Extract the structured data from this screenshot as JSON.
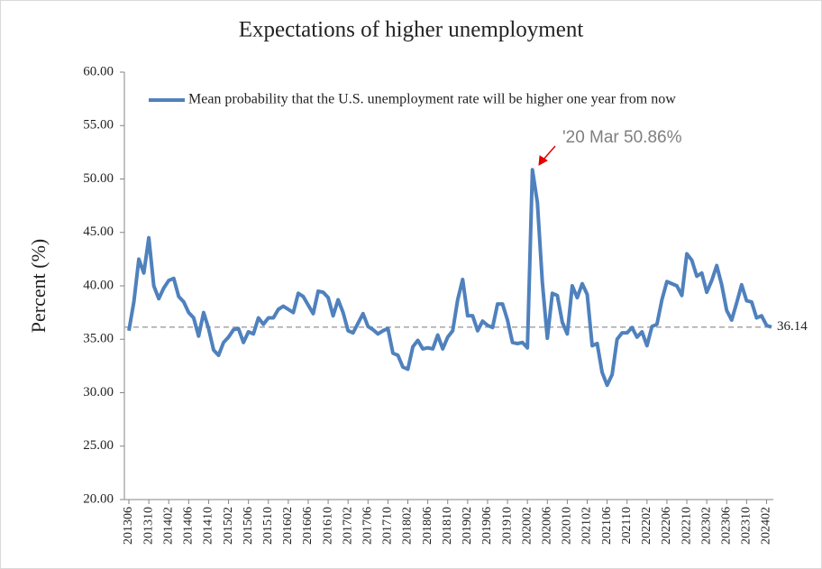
{
  "chart_data": {
    "type": "line",
    "title": "Expectations  of higher unemployment",
    "y_label": "Percent (%)",
    "categories": [
      "201306",
      null,
      null,
      null,
      "201310",
      null,
      null,
      null,
      "201402",
      null,
      null,
      null,
      "201406",
      null,
      null,
      null,
      "201410",
      null,
      null,
      null,
      "201502",
      null,
      null,
      null,
      "201506",
      null,
      null,
      null,
      "201510",
      null,
      null,
      null,
      "201602",
      null,
      null,
      null,
      "201606",
      null,
      null,
      null,
      "201610",
      null,
      null,
      null,
      "201702",
      null,
      null,
      null,
      "201706",
      null,
      null,
      null,
      "201710",
      null,
      null,
      null,
      "201802",
      null,
      null,
      null,
      "201806",
      null,
      null,
      null,
      "201810",
      null,
      null,
      null,
      "201902",
      null,
      null,
      null,
      "201906",
      null,
      null,
      null,
      "201910",
      null,
      null,
      null,
      "202002",
      null,
      null,
      null,
      "202006",
      null,
      null,
      null,
      "202010",
      null,
      null,
      null,
      "202102",
      null,
      null,
      null,
      "202106",
      null,
      null,
      null,
      "202110",
      null,
      null,
      null,
      "202202",
      null,
      null,
      null,
      "202206",
      null,
      null,
      null,
      "202210",
      null,
      null,
      null,
      "202302",
      null,
      null,
      null,
      "202306",
      null,
      null,
      null,
      "202310",
      null,
      null,
      null,
      "202402",
      null
    ],
    "series": [
      {
        "name": "Mean probability that the U.S. unemployment rate will be higher one year from now",
        "color": "#4f81bd",
        "values": [
          35.8,
          38.5,
          42.5,
          41.2,
          44.5,
          40.0,
          38.8,
          39.8,
          40.5,
          40.7,
          39.0,
          38.5,
          37.5,
          37.0,
          35.3,
          37.5,
          36.0,
          34.0,
          33.5,
          34.7,
          35.2,
          35.9,
          36.0,
          34.7,
          35.7,
          35.5,
          37.0,
          36.4,
          37.0,
          37.0,
          37.8,
          38.1,
          37.8,
          37.5,
          39.3,
          39.0,
          38.2,
          37.4,
          39.5,
          39.4,
          38.9,
          37.2,
          38.7,
          37.5,
          35.8,
          35.6,
          36.5,
          37.4,
          36.2,
          35.9,
          35.5,
          35.8,
          36.0,
          33.7,
          33.5,
          32.4,
          32.2,
          34.3,
          34.9,
          34.1,
          34.2,
          34.1,
          35.4,
          34.1,
          35.2,
          35.8,
          38.7,
          40.6,
          37.2,
          37.2,
          35.8,
          36.7,
          36.3,
          36.1,
          38.3,
          38.3,
          36.8,
          34.7,
          34.6,
          34.7,
          34.2,
          50.86,
          47.8,
          40.3,
          35.1,
          39.3,
          39.1,
          36.6,
          35.5,
          40.0,
          38.9,
          40.2,
          39.2,
          34.4,
          34.6,
          31.9,
          30.7,
          31.7,
          35.0,
          35.6,
          35.6,
          36.1,
          35.2,
          35.7,
          34.4,
          36.2,
          36.4,
          38.7,
          40.4,
          40.2,
          40.0,
          39.1,
          43.0,
          42.4,
          40.9,
          41.2,
          39.4,
          40.5,
          41.9,
          40.1,
          37.7,
          36.8,
          38.4,
          40.1,
          38.6,
          38.5,
          37.0,
          37.2,
          36.3,
          36.14
        ]
      }
    ],
    "ylim": [
      20,
      60
    ],
    "yticks": [
      {
        "value": 20,
        "label": "20.00"
      },
      {
        "value": 25,
        "label": "25.00"
      },
      {
        "value": 30,
        "label": "30.00"
      },
      {
        "value": 35,
        "label": "35.00"
      },
      {
        "value": 40,
        "label": "40.00"
      },
      {
        "value": 45,
        "label": "45.00"
      },
      {
        "value": 50,
        "label": "50.00"
      },
      {
        "value": 55,
        "label": "55.00"
      },
      {
        "value": 60,
        "label": "60.00"
      }
    ],
    "reference_line": 36.14,
    "annotation": "'20 Mar 50.86%",
    "annotation_color": "#e00000",
    "legend": "top-left"
  }
}
